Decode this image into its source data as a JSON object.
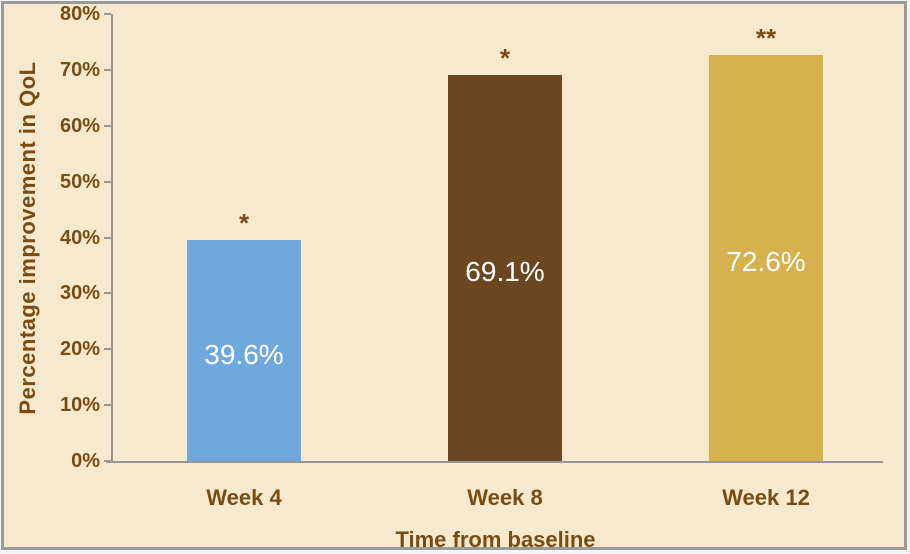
{
  "chart_data": {
    "type": "bar",
    "categories": [
      "Week 4",
      "Week 8",
      "Week 12"
    ],
    "values": [
      39.6,
      69.1,
      72.6
    ],
    "value_labels": [
      "39.6%",
      "69.1%",
      "72.6%"
    ],
    "significance_markers": [
      "*",
      "*",
      "**"
    ],
    "bar_colors": [
      "#6FA8DC",
      "#6A4720",
      "#D7B14D"
    ],
    "xlabel": "Time from baseline",
    "ylabel": "Percentage improvement in QoL",
    "ylim": [
      0,
      80
    ],
    "ytick_labels": [
      "0%",
      "10%",
      "20%",
      "30%",
      "40%",
      "50%",
      "60%",
      "70%",
      "80%"
    ],
    "grid": false,
    "legend": "none",
    "value_label_position": "inside-center"
  },
  "style": {
    "background": "#F7E9CD",
    "text_color": "#7A4C13",
    "axis_color": "#969696",
    "frame_color": "#9A9A9A",
    "value_label_color": "#FFFFFF"
  }
}
